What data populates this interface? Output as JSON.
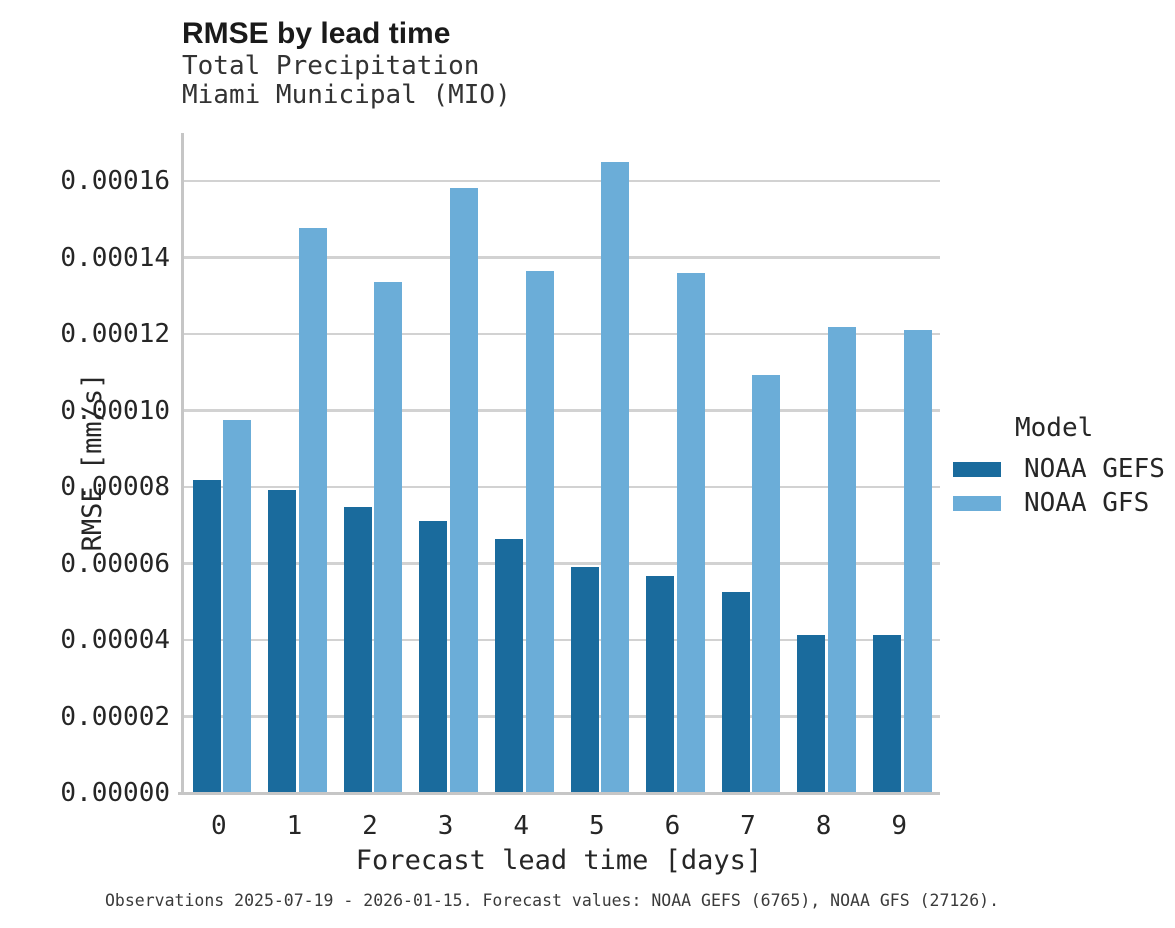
{
  "chart_data": {
    "type": "bar",
    "title": "RMSE by lead time",
    "subtitle_line1": "Total Precipitation",
    "subtitle_line2": "Miami Municipal (MIO)",
    "xlabel": "Forecast lead time [days]",
    "ylabel": "RMSE [mm/s]",
    "categories": [
      "0",
      "1",
      "2",
      "3",
      "4",
      "5",
      "6",
      "7",
      "8",
      "9"
    ],
    "series": [
      {
        "name": "NOAA GEFS",
        "color": "#1a6b9d",
        "values": [
          8.17e-05,
          7.93e-05,
          7.47e-05,
          7.1e-05,
          6.63e-05,
          5.9e-05,
          5.67e-05,
          5.26e-05,
          4.14e-05,
          4.14e-05
        ]
      },
      {
        "name": "NOAA GFS",
        "color": "#6badd8",
        "values": [
          9.75e-05,
          0.0001478,
          0.0001335,
          0.0001582,
          0.0001366,
          0.0001649,
          0.0001359,
          0.0001094,
          0.0001218,
          0.000121
        ]
      }
    ],
    "ylim": [
      0,
      0.00017255
    ],
    "yticks": [
      {
        "label": "0.00000",
        "value": 0
      },
      {
        "label": "0.00002",
        "value": 2e-05
      },
      {
        "label": "0.00004",
        "value": 4e-05
      },
      {
        "label": "0.00006",
        "value": 6e-05
      },
      {
        "label": "0.00008",
        "value": 8e-05
      },
      {
        "label": "0.00010",
        "value": 0.0001
      },
      {
        "label": "0.00012",
        "value": 0.00012
      },
      {
        "label": "0.00014",
        "value": 0.00014
      },
      {
        "label": "0.00016",
        "value": 0.00016
      }
    ],
    "grid": "horizontal",
    "legend_position": "right",
    "legend_title": "Model",
    "caption": "Observations 2025-07-19 - 2026-01-15. Forecast values: NOAA GEFS (6765), NOAA GFS (27126)."
  },
  "style": {
    "grid_color": "#d2d2d2",
    "axis_color": "#c6c6c6",
    "text_color": "#262626"
  }
}
